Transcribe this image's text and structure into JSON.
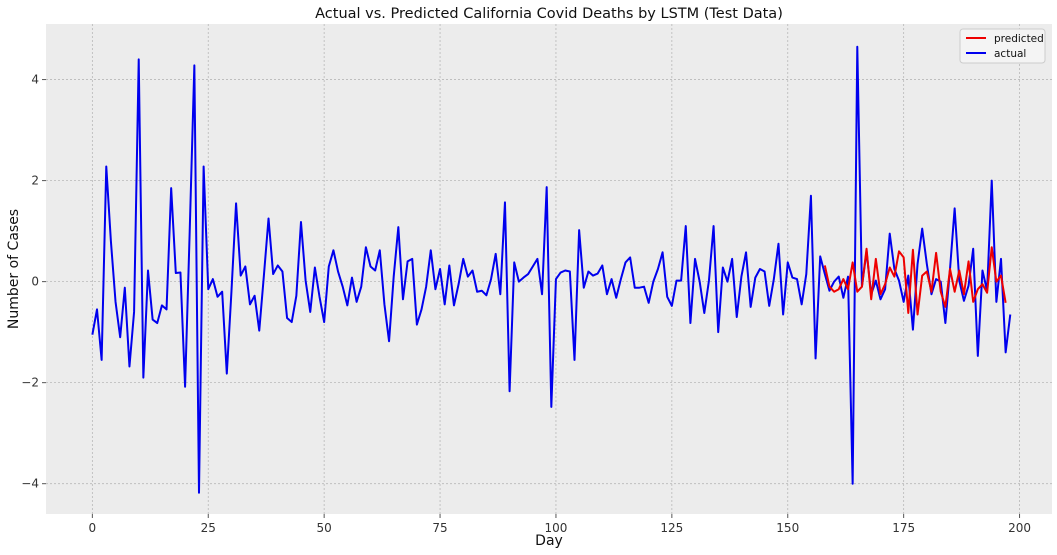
{
  "chart_data": {
    "type": "line",
    "title": "Actual vs. Predicted California Covid Deaths by LSTM (Test Data)",
    "xlabel": "Day",
    "ylabel": "Number of Cases",
    "xlim": [
      -10,
      207
    ],
    "ylim": [
      -4.6,
      5.1
    ],
    "xticks": [
      0,
      25,
      50,
      75,
      100,
      125,
      150,
      175,
      200
    ],
    "yticks": [
      -4,
      -2,
      0,
      2,
      4
    ],
    "grid": true,
    "legend_position": "top-right",
    "background": "#ececec",
    "series": [
      {
        "name": "predicted",
        "color": "#ee0000",
        "x_start": 158,
        "values": [
          0.32,
          -0.1,
          -0.2,
          -0.15,
          0.05,
          -0.15,
          0.38,
          -0.2,
          -0.1,
          0.65,
          -0.35,
          0.45,
          -0.25,
          -0.05,
          0.28,
          0.1,
          0.6,
          0.48,
          -0.62,
          0.63,
          -0.65,
          0.12,
          0.2,
          -0.2,
          0.57,
          -0.2,
          -0.5,
          0.25,
          -0.2,
          0.22,
          -0.25,
          0.4,
          -0.4,
          -0.15,
          -0.05,
          -0.22,
          0.68,
          0.0,
          0.12,
          -0.42
        ]
      },
      {
        "name": "actual",
        "color": "#0000ee",
        "x_start": 0,
        "values": [
          -1.05,
          -0.55,
          -1.55,
          2.28,
          0.8,
          -0.4,
          -1.1,
          -0.12,
          -1.68,
          -0.6,
          4.4,
          -1.9,
          0.22,
          -0.75,
          -0.82,
          -0.47,
          -0.55,
          1.85,
          0.17,
          0.18,
          -2.08,
          1.0,
          4.28,
          -4.18,
          2.28,
          -0.15,
          0.05,
          -0.3,
          -0.2,
          -1.82,
          -0.2,
          1.55,
          0.12,
          0.3,
          -0.45,
          -0.28,
          -0.97,
          0.12,
          1.25,
          0.15,
          0.32,
          0.2,
          -0.72,
          -0.8,
          -0.28,
          1.18,
          0.02,
          -0.6,
          0.28,
          -0.3,
          -0.8,
          0.3,
          0.62,
          0.2,
          -0.1,
          -0.47,
          0.08,
          -0.4,
          -0.1,
          0.68,
          0.3,
          0.22,
          0.62,
          -0.45,
          -1.18,
          0.1,
          1.08,
          -0.35,
          0.4,
          0.45,
          -0.85,
          -0.55,
          -0.1,
          0.62,
          -0.15,
          0.25,
          -0.45,
          0.32,
          -0.47,
          -0.05,
          0.45,
          0.1,
          0.22,
          -0.2,
          -0.18,
          -0.27,
          0.05,
          0.55,
          -0.25,
          1.57,
          -2.17,
          0.38,
          0.0,
          0.08,
          0.15,
          0.3,
          0.45,
          -0.25,
          1.87,
          -2.48,
          0.05,
          0.18,
          0.22,
          0.2,
          -1.55,
          1.02,
          -0.12,
          0.2,
          0.12,
          0.16,
          0.32,
          -0.25,
          0.05,
          -0.32,
          0.05,
          0.38,
          0.48,
          -0.12,
          -0.12,
          -0.1,
          -0.42,
          0.0,
          0.25,
          0.58,
          -0.3,
          -0.48,
          0.02,
          0.02,
          1.1,
          -0.82,
          0.45,
          0.0,
          -0.62,
          0.02,
          1.1,
          -1.0,
          0.28,
          0.0,
          0.45,
          -0.7,
          0.1,
          0.58,
          -0.5,
          0.08,
          0.25,
          0.2,
          -0.48,
          0.05,
          0.75,
          -0.65,
          0.38,
          0.08,
          0.05,
          -0.45,
          0.15,
          1.7,
          -1.52,
          0.5,
          0.15,
          -0.18,
          0.0,
          0.1,
          -0.32,
          0.1,
          -4.0,
          4.65,
          -0.1,
          0.6,
          -0.25,
          0.02,
          -0.35,
          -0.15,
          0.95,
          0.25,
          0.02,
          -0.4,
          0.12,
          -0.95,
          0.35,
          1.05,
          0.35,
          -0.25,
          0.05,
          0.0,
          -0.82,
          0.25,
          1.45,
          0.02,
          -0.38,
          -0.08,
          0.65,
          -1.47,
          0.22,
          -0.18,
          2.0,
          -0.4,
          0.45,
          -1.4,
          -0.65
        ]
      }
    ]
  }
}
